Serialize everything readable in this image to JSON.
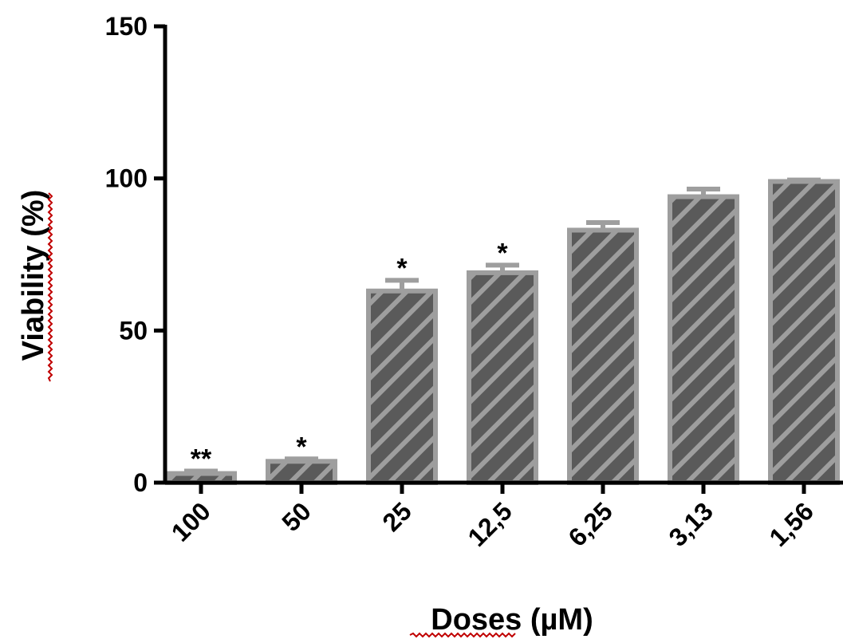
{
  "chart_data": {
    "type": "bar",
    "categories": [
      "100",
      "50",
      "25",
      "12,5",
      "6,25",
      "3,13",
      "1,56"
    ],
    "series": [
      {
        "values": [
          3,
          7,
          63,
          69,
          83,
          94,
          99
        ],
        "errors": [
          0.8,
          0.8,
          3.5,
          2.5,
          2.5,
          2.5,
          0.5
        ],
        "fill_color": "#5a5a5a",
        "stripe_color": "#9e9e9e",
        "border_color": "#9e9e9e"
      }
    ],
    "annotations": [
      "**",
      "*",
      "*",
      "*",
      "",
      "",
      ""
    ],
    "xlabel": "Doses (µM)",
    "ylabel": "Viability (%)",
    "ylim": [
      0,
      150
    ],
    "yticks": [
      0,
      50,
      100,
      150
    ],
    "grid": false
  }
}
